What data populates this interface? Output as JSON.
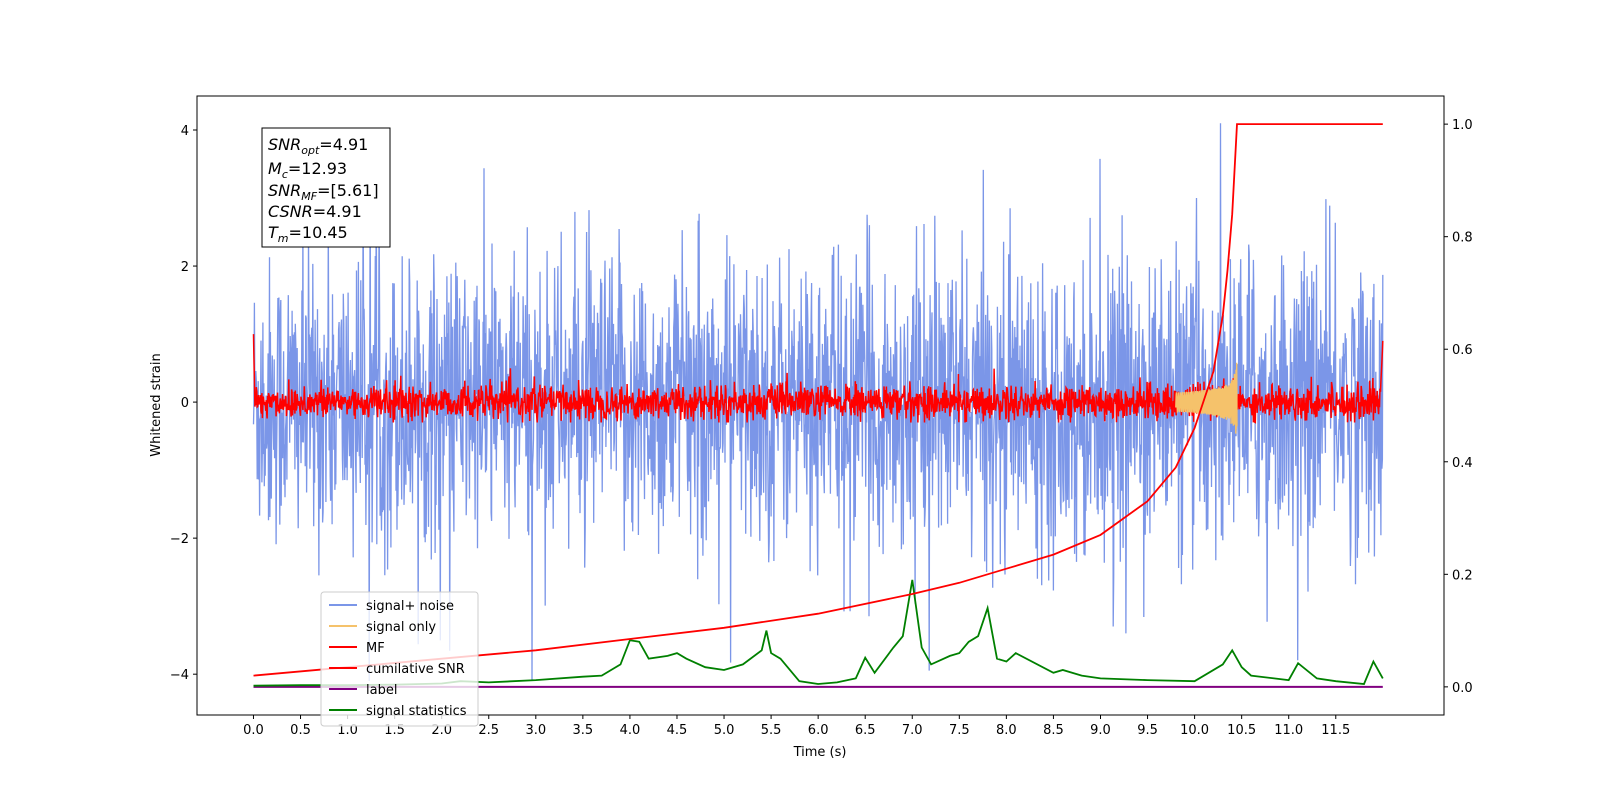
{
  "chart_data": {
    "type": "line",
    "xlabel": "Time (s)",
    "ylabel": "Whitened strain",
    "xlim": [
      -0.6,
      12.65
    ],
    "ylim": [
      -4.6,
      4.5
    ],
    "ylim_right": [
      -0.05,
      1.05
    ],
    "grid": false,
    "legend_position": "lower-left",
    "x_ticks": [
      "0.0",
      "0.5",
      "1.0",
      "1.5",
      "2.0",
      "2.5",
      "3.0",
      "3.5",
      "4.0",
      "4.5",
      "5.0",
      "5.5",
      "6.0",
      "6.5",
      "7.0",
      "7.5",
      "8.0",
      "8.5",
      "9.0",
      "9.5",
      "10.0",
      "10.5",
      "11.0",
      "11.5"
    ],
    "y_ticks_left": [
      "−4",
      "−2",
      "0",
      "2",
      "4"
    ],
    "y_ticks_right": [
      "0.0",
      "0.2",
      "0.4",
      "0.6",
      "0.8",
      "1.0"
    ],
    "annotation": {
      "snr_opt": {
        "sym": "SNR",
        "sub": "opt",
        "value": "=4.91"
      },
      "mc": {
        "sym": "M",
        "sub": "c",
        "value": "=12.93"
      },
      "snr_mf": {
        "sym": "SNR",
        "sub": "MF",
        "value": "=[5.61]"
      },
      "csnr": {
        "sym": "CSNR",
        "sub": "",
        "value": "=4.91"
      },
      "tm": {
        "sym": "T",
        "sub": "m",
        "value": "=10.45"
      }
    },
    "series": [
      {
        "name": "signal+ noise",
        "color": "#7b96e8",
        "axis": "left",
        "x_range": [
          0,
          12
        ],
        "envelope_mean": 0,
        "envelope_amplitude": 2.6,
        "max_spike": 4.1
      },
      {
        "name": "signal only",
        "color": "#f5c26b",
        "axis": "left",
        "x_range": [
          9.8,
          10.45
        ],
        "peak_amplitude": 0.9,
        "peak_time": 10.45
      },
      {
        "name": "MF",
        "color": "#ff0000",
        "axis": "left",
        "x_range": [
          0,
          12
        ],
        "envelope_amplitude": 0.35,
        "start_value": 1.0
      },
      {
        "name": "cumilative SNR",
        "color": "#ff0000",
        "axis": "right",
        "x": [
          0,
          1,
          2,
          3,
          4,
          5,
          6,
          7,
          7.5,
          8,
          8.5,
          9,
          9.5,
          9.8,
          10.0,
          10.2,
          10.3,
          10.35,
          10.4,
          10.45,
          12.0
        ],
        "values": [
          0.02,
          0.035,
          0.05,
          0.065,
          0.085,
          0.105,
          0.13,
          0.165,
          0.185,
          0.21,
          0.235,
          0.27,
          0.33,
          0.39,
          0.46,
          0.56,
          0.66,
          0.74,
          0.84,
          1.0,
          1.0
        ]
      },
      {
        "name": "label",
        "color": "#800080",
        "axis": "right",
        "x": [
          0,
          12
        ],
        "values": [
          0.0,
          0.0
        ]
      },
      {
        "name": "signal statistics",
        "color": "#008000",
        "axis": "right",
        "x": [
          0,
          0.5,
          1.0,
          1.5,
          2.0,
          2.2,
          2.5,
          3.0,
          3.5,
          3.7,
          3.8,
          3.9,
          4.0,
          4.1,
          4.2,
          4.4,
          4.5,
          4.6,
          4.8,
          5.0,
          5.2,
          5.4,
          5.45,
          5.5,
          5.6,
          5.8,
          6.0,
          6.2,
          6.4,
          6.5,
          6.6,
          6.8,
          6.9,
          7.0,
          7.1,
          7.2,
          7.4,
          7.5,
          7.6,
          7.7,
          7.8,
          7.9,
          8.0,
          8.1,
          8.5,
          8.6,
          8.8,
          9.0,
          9.5,
          10.0,
          10.3,
          10.4,
          10.5,
          10.6,
          11.0,
          11.1,
          11.3,
          11.5,
          11.8,
          11.9,
          12.0
        ],
        "values": [
          0.002,
          0.003,
          0.003,
          0.004,
          0.006,
          0.01,
          0.008,
          0.012,
          0.018,
          0.02,
          0.03,
          0.04,
          0.083,
          0.08,
          0.05,
          0.055,
          0.06,
          0.05,
          0.035,
          0.03,
          0.04,
          0.065,
          0.1,
          0.06,
          0.05,
          0.01,
          0.005,
          0.008,
          0.015,
          0.052,
          0.025,
          0.07,
          0.09,
          0.19,
          0.07,
          0.04,
          0.055,
          0.06,
          0.08,
          0.09,
          0.14,
          0.05,
          0.045,
          0.06,
          0.025,
          0.03,
          0.02,
          0.015,
          0.012,
          0.01,
          0.04,
          0.065,
          0.035,
          0.02,
          0.012,
          0.042,
          0.015,
          0.01,
          0.005,
          0.045,
          0.015
        ]
      }
    ]
  }
}
